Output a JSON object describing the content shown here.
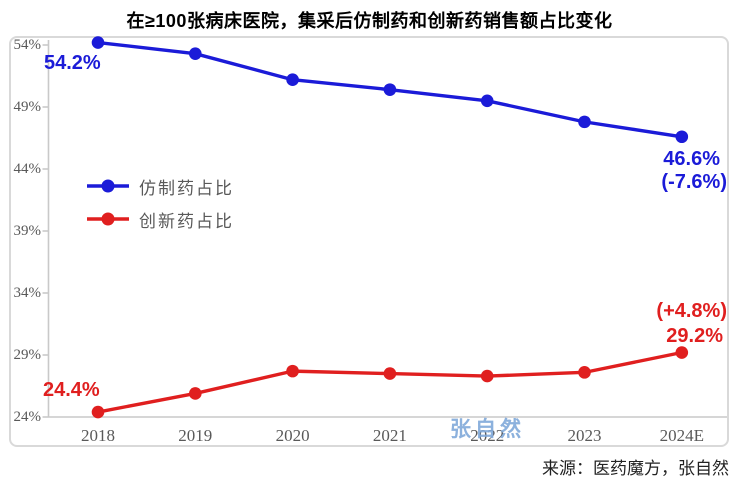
{
  "title": "在≥100张病床医院，集采后仿制药和创新药销售额占比变化",
  "source": "来源：医药魔方，张自然",
  "watermark": "张自然",
  "colors": {
    "generic_blue": "#1b1bd8",
    "innovative_red": "#e01f1f",
    "axis_gray": "#c9c9c9",
    "tick_text_gray": "#595959",
    "frame_gray": "#d9d9d9",
    "watermark_blue": "#7fa8d9"
  },
  "annotations": {
    "generic_start": "54.2%",
    "generic_end": "46.6%",
    "generic_change": "(-7.6%)",
    "innovative_start": "24.4%",
    "innovative_end": "29.2%",
    "innovative_change": "(+4.8%)"
  },
  "chart_data": {
    "type": "line",
    "categories": [
      "2018",
      "2019",
      "2020",
      "2021",
      "2022",
      "2023",
      "2024E"
    ],
    "series": [
      {
        "name": "仿制药占比",
        "color": "#1b1bd8",
        "values": [
          54.2,
          53.3,
          51.2,
          50.4,
          49.5,
          47.8,
          46.6
        ]
      },
      {
        "name": "创新药占比",
        "color": "#e01f1f",
        "values": [
          24.4,
          25.9,
          27.7,
          27.5,
          27.3,
          27.6,
          29.2
        ]
      }
    ],
    "title": "在≥100张病床医院，集采后仿制药和创新药销售额占比变化",
    "xlabel": "",
    "ylabel": "",
    "ylim": [
      24,
      54
    ],
    "yticks": [
      54,
      49,
      44,
      39,
      34,
      29,
      24
    ],
    "ytick_suffix": "%",
    "legend_position": "upper-left-inside",
    "grid": false
  }
}
